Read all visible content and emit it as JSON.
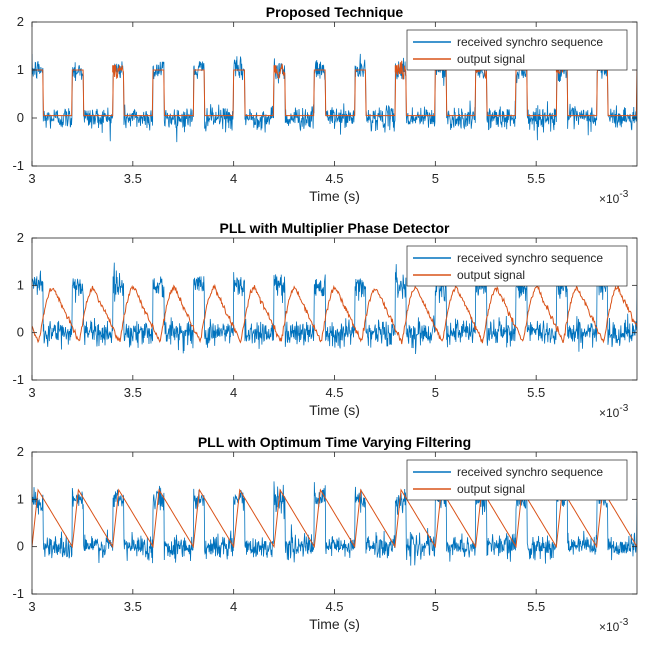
{
  "chart_data": [
    {
      "type": "line",
      "title": "Proposed Technique",
      "xlabel": "Time (s)",
      "x_multiplier_base": "10",
      "x_multiplier_exp": "-3",
      "xlim": [
        3.0,
        6.0
      ],
      "ylim": [
        -1,
        2
      ],
      "xticks": [
        3,
        3.5,
        4,
        4.5,
        5,
        5.5
      ],
      "xtick_labels": [
        "3",
        "3.5",
        "4",
        "4.5",
        "5",
        "5.5"
      ],
      "yticks": [
        -1,
        0,
        1,
        2
      ],
      "ytick_labels": [
        "-1",
        "0",
        "1",
        "2"
      ],
      "grid": false,
      "legend_position": "top-right",
      "pulse_period": 0.2,
      "pulse_width": 0.055,
      "first_pulse_start": 3.0,
      "noise_std": 0.12,
      "series": [
        {
          "name": "received synchro sequence",
          "color": "#0072BD",
          "kind": "noisy_pulses"
        },
        {
          "name": "output signal",
          "color": "#D95319",
          "kind": "square",
          "jitter_pulses": [
            2,
            6,
            9,
            11,
            13
          ]
        }
      ]
    },
    {
      "type": "line",
      "title": "PLL with Multiplier Phase Detector",
      "xlabel": "Time (s)",
      "x_multiplier_base": "10",
      "x_multiplier_exp": "-3",
      "xlim": [
        3.0,
        6.0
      ],
      "ylim": [
        -1,
        2
      ],
      "xticks": [
        3,
        3.5,
        4,
        4.5,
        5,
        5.5
      ],
      "xtick_labels": [
        "3",
        "3.5",
        "4",
        "4.5",
        "5",
        "5.5"
      ],
      "yticks": [
        -1,
        0,
        1,
        2
      ],
      "ytick_labels": [
        "-1",
        "0",
        "1",
        "2"
      ],
      "grid": false,
      "legend_position": "top-right",
      "pulse_period": 0.2,
      "pulse_width": 0.055,
      "first_pulse_start": 3.0,
      "noise_std": 0.14,
      "series": [
        {
          "name": "received synchro sequence",
          "color": "#0072BD",
          "kind": "noisy_pulses"
        },
        {
          "name": "output signal",
          "color": "#D95319",
          "kind": "smooth_wave",
          "peak": 0.95,
          "trough": -0.2,
          "phase_delay": 0.035
        }
      ]
    },
    {
      "type": "line",
      "title": "PLL with Optimum Time Varying Filtering",
      "xlabel": "Time (s)",
      "x_multiplier_base": "10",
      "x_multiplier_exp": "-3",
      "xlim": [
        3.0,
        6.0
      ],
      "ylim": [
        -1,
        2
      ],
      "xticks": [
        3,
        3.5,
        4,
        4.5,
        5,
        5.5
      ],
      "xtick_labels": [
        "3",
        "3.5",
        "4",
        "4.5",
        "5",
        "5.5"
      ],
      "yticks": [
        -1,
        0,
        1,
        2
      ],
      "ytick_labels": [
        "-1",
        "0",
        "1",
        "2"
      ],
      "grid": false,
      "legend_position": "top-right",
      "pulse_period": 0.2,
      "pulse_width": 0.055,
      "first_pulse_start": 3.0,
      "noise_std": 0.13,
      "series": [
        {
          "name": "received synchro sequence",
          "color": "#0072BD",
          "kind": "noisy_pulses"
        },
        {
          "name": "output signal",
          "color": "#D95319",
          "kind": "sawtooth",
          "peak": 1.2,
          "trough": 0.0
        }
      ]
    }
  ]
}
